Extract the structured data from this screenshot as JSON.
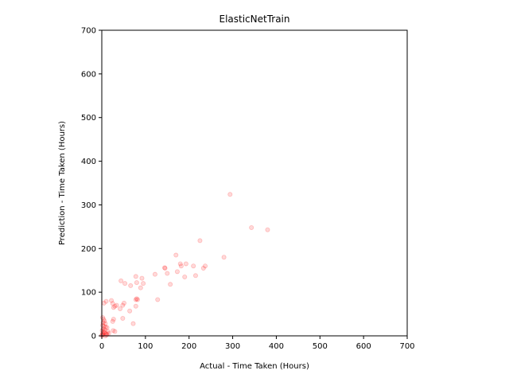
{
  "chart_data": {
    "type": "scatter",
    "title": "ElasticNetTrain",
    "xlabel": "Actual - Time Taken (Hours)",
    "ylabel": "Prediction - Time Taken (Hours)",
    "xlim": [
      0,
      700
    ],
    "ylim": [
      0,
      700
    ],
    "xticks": [
      "0",
      "100",
      "200",
      "300",
      "400",
      "500",
      "600",
      "700"
    ],
    "yticks": [
      "0",
      "100",
      "200",
      "300",
      "400",
      "500",
      "600",
      "700"
    ],
    "grid": false,
    "marker_color": "#ff0000",
    "marker_alpha": 0.15,
    "series": [
      {
        "points": [
          [
            294,
            324
          ],
          [
            343,
            248
          ],
          [
            380,
            243
          ],
          [
            225,
            218
          ],
          [
            280,
            180
          ],
          [
            170,
            185
          ],
          [
            180,
            165
          ],
          [
            182,
            160
          ],
          [
            193,
            165
          ],
          [
            210,
            160
          ],
          [
            237,
            160
          ],
          [
            233,
            155
          ],
          [
            144,
            156
          ],
          [
            145,
            155
          ],
          [
            150,
            143
          ],
          [
            173,
            147
          ],
          [
            190,
            135
          ],
          [
            215,
            138
          ],
          [
            157,
            118
          ],
          [
            122,
            141
          ],
          [
            92,
            132
          ],
          [
            78,
            136
          ],
          [
            80,
            122
          ],
          [
            95,
            120
          ],
          [
            89,
            110
          ],
          [
            44,
            126
          ],
          [
            53,
            120
          ],
          [
            66,
            115
          ],
          [
            128,
            83
          ],
          [
            80,
            85
          ],
          [
            78,
            83
          ],
          [
            82,
            83
          ],
          [
            78,
            68
          ],
          [
            22,
            81
          ],
          [
            10,
            79
          ],
          [
            5,
            75
          ],
          [
            25,
            74
          ],
          [
            30,
            68
          ],
          [
            27,
            65
          ],
          [
            34,
            70
          ],
          [
            48,
            70
          ],
          [
            51,
            75
          ],
          [
            42,
            62
          ],
          [
            64,
            57
          ],
          [
            48,
            40
          ],
          [
            27,
            38
          ],
          [
            25,
            33
          ],
          [
            72,
            28
          ],
          [
            26,
            12
          ],
          [
            30,
            10
          ],
          [
            2,
            42
          ],
          [
            4,
            38
          ],
          [
            6,
            34
          ],
          [
            3,
            30
          ],
          [
            8,
            28
          ],
          [
            2,
            24
          ],
          [
            5,
            22
          ],
          [
            9,
            20
          ],
          [
            12,
            19
          ],
          [
            3,
            16
          ],
          [
            7,
            14
          ],
          [
            1,
            12
          ],
          [
            4,
            10
          ],
          [
            6,
            8
          ],
          [
            2,
            6
          ],
          [
            9,
            5
          ],
          [
            12,
            4
          ],
          [
            3,
            3
          ],
          [
            1,
            2
          ],
          [
            0,
            1
          ],
          [
            14,
            10
          ],
          [
            16,
            6
          ],
          [
            11,
            2
          ],
          [
            8,
            0
          ]
        ]
      }
    ]
  }
}
